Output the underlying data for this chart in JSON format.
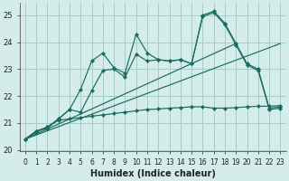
{
  "xlabel": "Humidex (Indice chaleur)",
  "background_color": "#d4ecea",
  "grid_color": "#a8ccc8",
  "line_color": "#1a6b60",
  "xlim": [
    -0.5,
    23.5
  ],
  "ylim": [
    19.95,
    25.45
  ],
  "yticks": [
    20,
    21,
    22,
    23,
    24,
    25
  ],
  "xticks": [
    0,
    1,
    2,
    3,
    4,
    5,
    6,
    7,
    8,
    9,
    10,
    11,
    12,
    13,
    14,
    15,
    16,
    17,
    18,
    19,
    20,
    21,
    22,
    23
  ],
  "line1_x": [
    0,
    1,
    2,
    3,
    4,
    5,
    6,
    7,
    8,
    9,
    10,
    11,
    12,
    13,
    14,
    15,
    16,
    17,
    18,
    19,
    20,
    21,
    22,
    23
  ],
  "line1_y": [
    20.4,
    20.7,
    20.8,
    21.15,
    21.5,
    22.25,
    23.3,
    23.6,
    23.05,
    22.85,
    24.3,
    23.6,
    23.35,
    23.3,
    23.35,
    23.2,
    25.0,
    25.15,
    24.7,
    23.95,
    23.2,
    23.0,
    21.55,
    21.6
  ],
  "line2_x": [
    0,
    1,
    2,
    3,
    4,
    5,
    6,
    7,
    8,
    9,
    10,
    11,
    12,
    13,
    14,
    15,
    16,
    17,
    18,
    19,
    20,
    21,
    22,
    23
  ],
  "line2_y": [
    20.4,
    20.7,
    20.85,
    21.15,
    21.5,
    21.4,
    22.2,
    22.95,
    23.0,
    22.7,
    23.55,
    23.3,
    23.35,
    23.3,
    23.35,
    23.2,
    24.95,
    25.1,
    24.65,
    23.9,
    23.15,
    22.95,
    21.5,
    21.55
  ],
  "line3_x": [
    0,
    23
  ],
  "line3_y": [
    20.4,
    23.95
  ],
  "line4_x": [
    0,
    19
  ],
  "line4_y": [
    20.4,
    23.95
  ],
  "line5_x": [
    0,
    1,
    2,
    3,
    4,
    5,
    6,
    7,
    8,
    9,
    10,
    11,
    12,
    13,
    14,
    15,
    16,
    17,
    18,
    19,
    20,
    21,
    22,
    23
  ],
  "line5_y": [
    20.4,
    20.65,
    20.85,
    21.1,
    21.15,
    21.2,
    21.25,
    21.3,
    21.35,
    21.4,
    21.45,
    21.5,
    21.52,
    21.55,
    21.57,
    21.6,
    21.6,
    21.55,
    21.55,
    21.57,
    21.6,
    21.62,
    21.62,
    21.65
  ]
}
